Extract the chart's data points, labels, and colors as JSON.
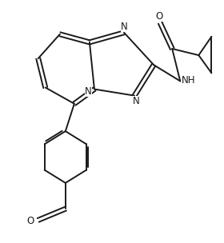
{
  "bg_color": "#ffffff",
  "line_color": "#1a1a1a",
  "line_width": 1.4,
  "font_size": 8.5,
  "figsize": [
    2.8,
    3.04
  ],
  "dpi": 100,
  "xlim": [
    0,
    10
  ],
  "ylim": [
    0,
    10.8
  ]
}
